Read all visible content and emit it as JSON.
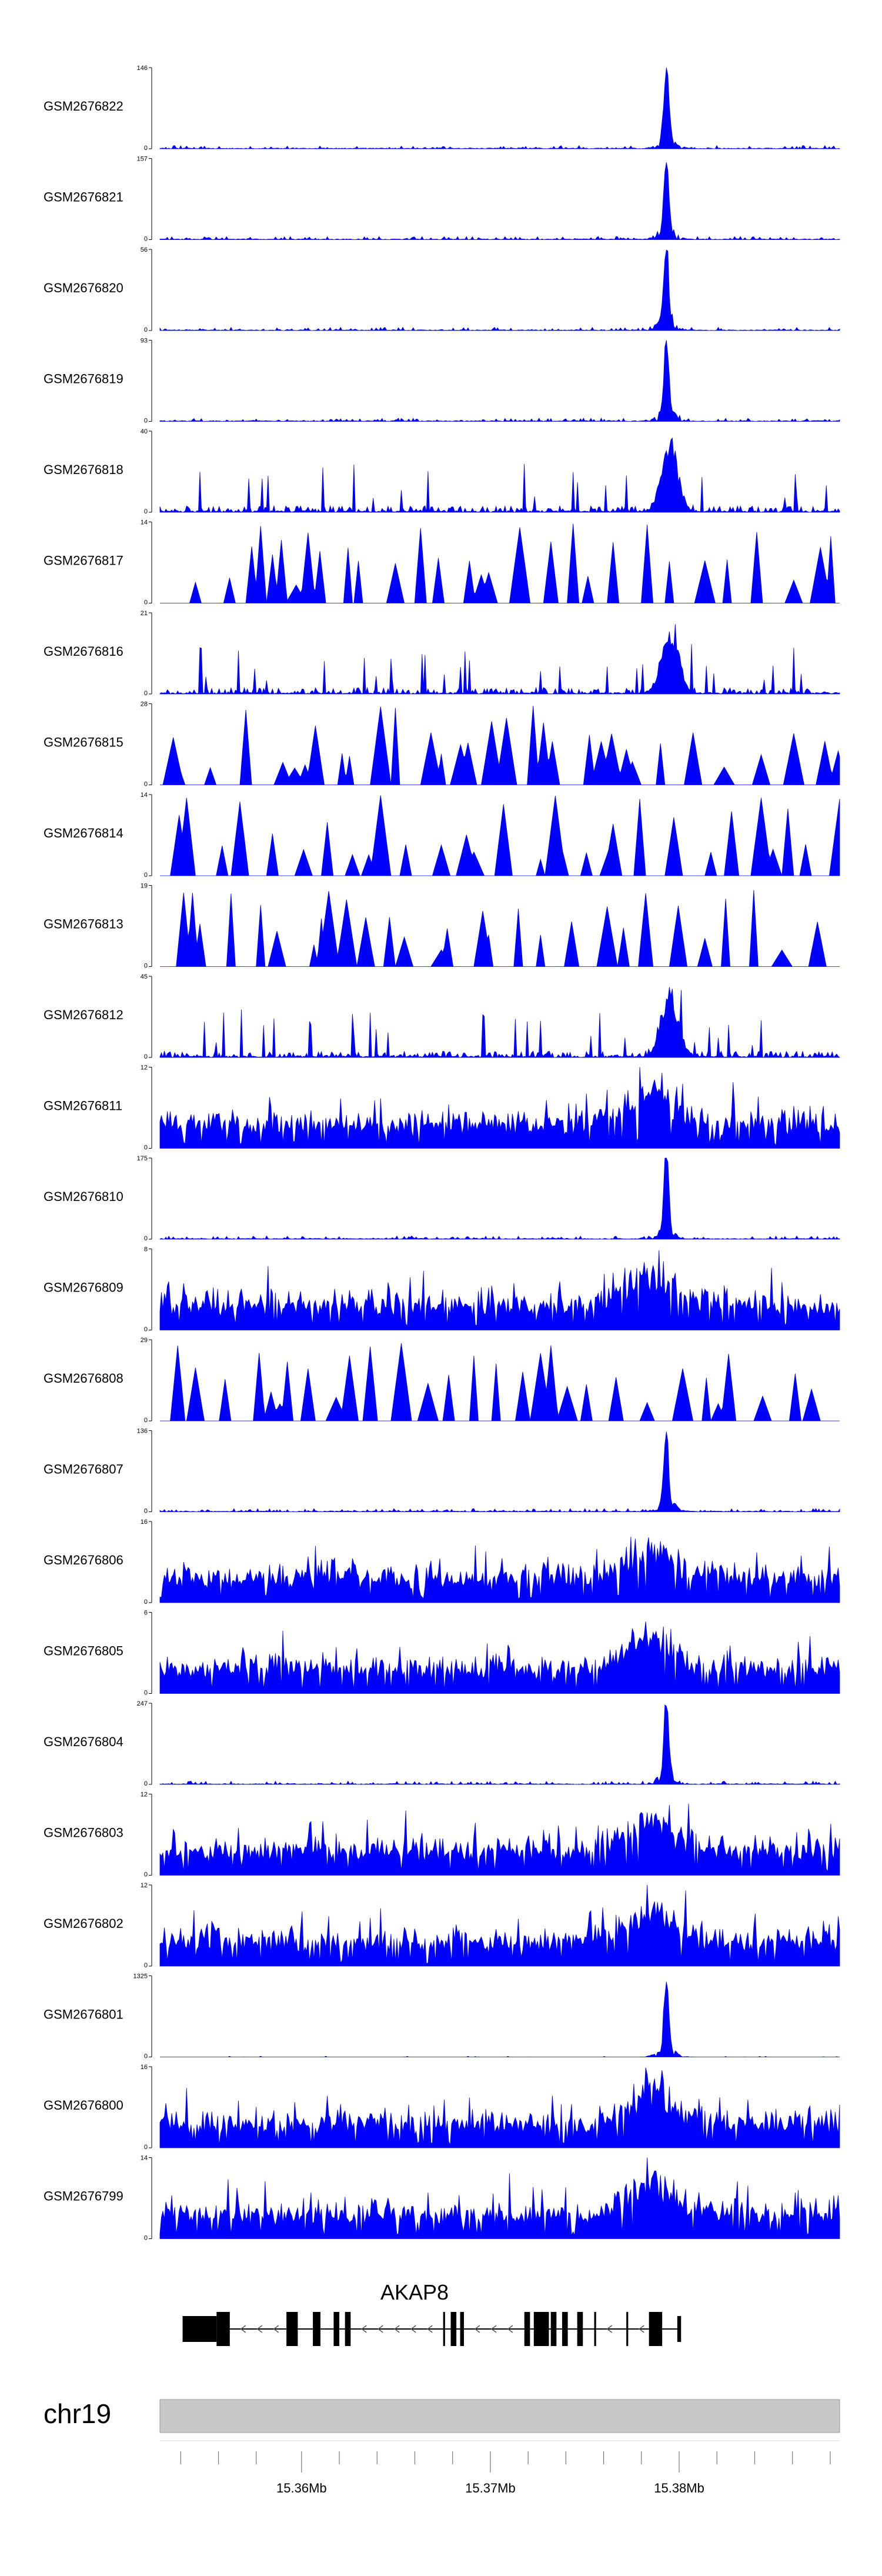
{
  "chart_data": {
    "type": "area",
    "title": "",
    "xlabel": "",
    "ylabel": "",
    "chromosome": "chr19",
    "xlim": [
      15.3525,
      15.3885
    ],
    "x_ticks": [
      {
        "value": 15.3536,
        "label": ""
      },
      {
        "value": 15.3556,
        "label": ""
      },
      {
        "value": 15.3576,
        "label": ""
      },
      {
        "value": 15.36,
        "label": "15.36Mb"
      },
      {
        "value": 15.362,
        "label": ""
      },
      {
        "value": 15.364,
        "label": ""
      },
      {
        "value": 15.366,
        "label": ""
      },
      {
        "value": 15.368,
        "label": ""
      },
      {
        "value": 15.37,
        "label": "15.37Mb"
      },
      {
        "value": 15.372,
        "label": ""
      },
      {
        "value": 15.374,
        "label": ""
      },
      {
        "value": 15.376,
        "label": ""
      },
      {
        "value": 15.378,
        "label": ""
      },
      {
        "value": 15.38,
        "label": "15.38Mb"
      },
      {
        "value": 15.382,
        "label": ""
      },
      {
        "value": 15.384,
        "label": ""
      },
      {
        "value": 15.386,
        "label": ""
      },
      {
        "value": 15.388,
        "label": ""
      }
    ],
    "series": [
      {
        "name": "GSM2676822",
        "ymax": 146,
        "ymin_label": "0",
        "ymax_label": "146",
        "profile": "peak",
        "seed": 22
      },
      {
        "name": "GSM2676821",
        "ymax": 157,
        "ymin_label": "0",
        "ymax_label": "157",
        "profile": "peak",
        "seed": 21
      },
      {
        "name": "GSM2676820",
        "ymax": 56,
        "ymin_label": "0",
        "ymax_label": "56",
        "profile": "peak",
        "seed": 20
      },
      {
        "name": "GSM2676819",
        "ymax": 93,
        "ymin_label": "0",
        "ymax_label": "93",
        "profile": "peak",
        "seed": 19
      },
      {
        "name": "GSM2676818",
        "ymax": 40,
        "ymin_label": "0",
        "ymax_label": "40",
        "profile": "spiky",
        "seed": 18
      },
      {
        "name": "GSM2676817",
        "ymax": 14,
        "ymin_label": "0",
        "ymax_label": "14",
        "profile": "sparse",
        "seed": 17
      },
      {
        "name": "GSM2676816",
        "ymax": 21,
        "ymin_label": "0",
        "ymax_label": "21",
        "profile": "spiky",
        "seed": 16
      },
      {
        "name": "GSM2676815",
        "ymax": 28,
        "ymin_label": "0",
        "ymax_label": "28",
        "profile": "sparse",
        "seed": 15
      },
      {
        "name": "GSM2676814",
        "ymax": 14,
        "ymin_label": "0",
        "ymax_label": "14",
        "profile": "sparse",
        "seed": 14
      },
      {
        "name": "GSM2676813",
        "ymax": 19,
        "ymin_label": "0",
        "ymax_label": "19",
        "profile": "sparse",
        "seed": 13
      },
      {
        "name": "GSM2676812",
        "ymax": 45,
        "ymin_label": "0",
        "ymax_label": "45",
        "profile": "spiky",
        "seed": 12
      },
      {
        "name": "GSM2676811",
        "ymax": 12,
        "ymin_label": "0",
        "ymax_label": "12",
        "profile": "dense",
        "seed": 11
      },
      {
        "name": "GSM2676810",
        "ymax": 175,
        "ymin_label": "0",
        "ymax_label": "175",
        "profile": "peak",
        "seed": 10
      },
      {
        "name": "GSM2676809",
        "ymax": 8,
        "ymin_label": "0",
        "ymax_label": "8",
        "profile": "dense",
        "seed": 9
      },
      {
        "name": "GSM2676808",
        "ymax": 29,
        "ymin_label": "0",
        "ymax_label": "29",
        "profile": "sparse",
        "seed": 8
      },
      {
        "name": "GSM2676807",
        "ymax": 136,
        "ymin_label": "0",
        "ymax_label": "136",
        "profile": "peak",
        "seed": 7
      },
      {
        "name": "GSM2676806",
        "ymax": 16,
        "ymin_label": "0",
        "ymax_label": "16",
        "profile": "dense",
        "seed": 6
      },
      {
        "name": "GSM2676805",
        "ymax": 6,
        "ymin_label": "0",
        "ymax_label": "6",
        "profile": "dense",
        "seed": 5
      },
      {
        "name": "GSM2676804",
        "ymax": 247,
        "ymin_label": "0",
        "ymax_label": "247",
        "profile": "peak",
        "seed": 4
      },
      {
        "name": "GSM2676803",
        "ymax": 12,
        "ymin_label": "0",
        "ymax_label": "12",
        "profile": "dense",
        "seed": 3
      },
      {
        "name": "GSM2676802",
        "ymax": 12,
        "ymin_label": "0",
        "ymax_label": "12",
        "profile": "dense",
        "seed": 2
      },
      {
        "name": "GSM2676801",
        "ymax": 1325,
        "ymin_label": "0",
        "ymax_label": "1325",
        "profile": "bigpeak",
        "seed": 1
      },
      {
        "name": "GSM2676800",
        "ymax": 16,
        "ymin_label": "0",
        "ymax_label": "16",
        "profile": "dense",
        "seed": 100
      },
      {
        "name": "GSM2676799",
        "ymax": 14,
        "ymin_label": "0",
        "ymax_label": "14",
        "profile": "dense",
        "seed": 99
      }
    ],
    "gene": {
      "name": "AKAP8",
      "strand": "-",
      "start": 15.3537,
      "end": 15.3801,
      "exons": [
        {
          "start": 15.3537,
          "end": 15.3555,
          "type": "utr"
        },
        {
          "start": 15.3555,
          "end": 15.3562,
          "type": "cds"
        },
        {
          "start": 15.3592,
          "end": 15.3598,
          "type": "cds"
        },
        {
          "start": 15.3606,
          "end": 15.361,
          "type": "cds"
        },
        {
          "start": 15.3617,
          "end": 15.362,
          "type": "cds"
        },
        {
          "start": 15.3623,
          "end": 15.3626,
          "type": "cds"
        },
        {
          "start": 15.3675,
          "end": 15.3676,
          "type": "cds"
        },
        {
          "start": 15.3679,
          "end": 15.3682,
          "type": "cds"
        },
        {
          "start": 15.3684,
          "end": 15.3686,
          "type": "cds"
        },
        {
          "start": 15.3718,
          "end": 15.3721,
          "type": "cds"
        },
        {
          "start": 15.3723,
          "end": 15.3731,
          "type": "cds"
        },
        {
          "start": 15.3732,
          "end": 15.3735,
          "type": "cds"
        },
        {
          "start": 15.3738,
          "end": 15.3741,
          "type": "cds"
        },
        {
          "start": 15.3746,
          "end": 15.3749,
          "type": "cds"
        },
        {
          "start": 15.3755,
          "end": 15.3756,
          "type": "cds"
        },
        {
          "start": 15.3772,
          "end": 15.3773,
          "type": "cds"
        },
        {
          "start": 15.3784,
          "end": 15.3791,
          "type": "cds"
        },
        {
          "start": 15.3799,
          "end": 15.3801,
          "type": "utr"
        }
      ]
    }
  },
  "colors": {
    "signal": "#0000ff",
    "ideogram": "#c8c8c8",
    "gene": "#000000",
    "axis": "#000000"
  }
}
